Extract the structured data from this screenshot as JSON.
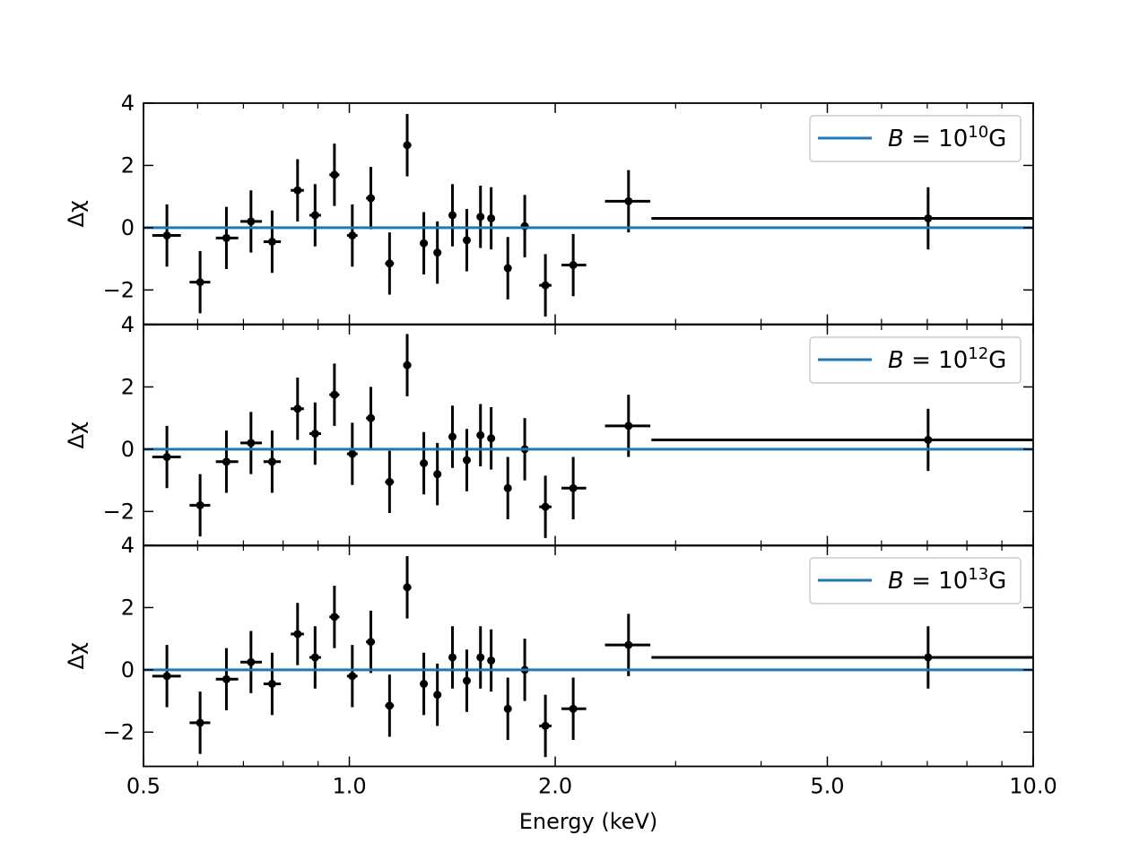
{
  "chart_data": {
    "type": "scatter",
    "xlabel": "Energy (keV)",
    "x_scale": "log",
    "xlim": [
      0.5,
      10.0
    ],
    "x_ticks": [
      0.5,
      1.0,
      2.0,
      5.0,
      10.0
    ],
    "x_tick_labels": [
      "0.5",
      "1.0",
      "2.0",
      "5.0",
      "10.0"
    ],
    "ylabel": "Δχ",
    "ylim": [
      -3.1,
      4.0
    ],
    "y_ticks": [
      -2,
      0,
      2,
      4
    ],
    "y_tick_labels": [
      "−2",
      "0",
      "2",
      "4"
    ],
    "grid": false,
    "legend_position": "top-right",
    "colors": {
      "model": "#1f77b4",
      "data": "#000000"
    },
    "panels": [
      {
        "legend_label": "B = 10^10 G",
        "legend_base": "B = 10",
        "legend_exp": "10",
        "legend_unit": "G",
        "model_value": 0,
        "points": [
          {
            "x": 0.541,
            "xlo": 0.515,
            "xhi": 0.567,
            "y": -0.25
          },
          {
            "x": 0.605,
            "xlo": 0.584,
            "xhi": 0.626,
            "y": -1.75
          },
          {
            "x": 0.661,
            "xlo": 0.638,
            "xhi": 0.688,
            "y": -0.33
          },
          {
            "x": 0.718,
            "xlo": 0.693,
            "xhi": 0.745,
            "y": 0.2
          },
          {
            "x": 0.771,
            "xlo": 0.749,
            "xhi": 0.794,
            "y": -0.45
          },
          {
            "x": 0.84,
            "xlo": 0.821,
            "xhi": 0.858,
            "y": 1.2
          },
          {
            "x": 0.891,
            "xlo": 0.874,
            "xhi": 0.909,
            "y": 0.4
          },
          {
            "x": 0.951,
            "xlo": 0.935,
            "xhi": 0.967,
            "y": 1.7
          },
          {
            "x": 1.01,
            "xlo": 0.992,
            "xhi": 1.028,
            "y": -0.25
          },
          {
            "x": 1.075,
            "xlo": 1.058,
            "xhi": 1.09,
            "y": 0.95
          },
          {
            "x": 1.145,
            "xlo": 1.128,
            "xhi": 1.162,
            "y": -1.15
          },
          {
            "x": 1.215,
            "xlo": 1.199,
            "xhi": 1.232,
            "y": 2.65
          },
          {
            "x": 1.285,
            "xlo": 1.269,
            "xhi": 1.302,
            "y": -0.5
          },
          {
            "x": 1.345,
            "xlo": 1.328,
            "xhi": 1.363,
            "y": -0.8
          },
          {
            "x": 1.415,
            "xlo": 1.398,
            "xhi": 1.432,
            "y": 0.4
          },
          {
            "x": 1.485,
            "xlo": 1.468,
            "xhi": 1.502,
            "y": -0.4
          },
          {
            "x": 1.555,
            "xlo": 1.538,
            "xhi": 1.572,
            "y": 0.35
          },
          {
            "x": 1.612,
            "xlo": 1.595,
            "xhi": 1.628,
            "y": 0.3
          },
          {
            "x": 1.705,
            "xlo": 1.688,
            "xhi": 1.722,
            "y": -1.3
          },
          {
            "x": 1.805,
            "xlo": 1.788,
            "xhi": 1.822,
            "y": 0.05
          },
          {
            "x": 1.935,
            "xlo": 1.895,
            "xhi": 1.975,
            "y": -1.85
          },
          {
            "x": 2.125,
            "xlo": 2.043,
            "xhi": 2.22,
            "y": -1.2
          },
          {
            "x": 2.56,
            "xlo": 2.365,
            "xhi": 2.755,
            "y": 0.85
          },
          {
            "x": 7.02,
            "xlo": 2.765,
            "xhi": 10.0,
            "y": 0.3
          }
        ]
      },
      {
        "legend_label": "B = 10^12 G",
        "legend_base": "B = 10",
        "legend_exp": "12",
        "legend_unit": "G",
        "model_value": 0,
        "points": [
          {
            "x": 0.541,
            "xlo": 0.515,
            "xhi": 0.567,
            "y": -0.25
          },
          {
            "x": 0.605,
            "xlo": 0.584,
            "xhi": 0.626,
            "y": -1.8
          },
          {
            "x": 0.661,
            "xlo": 0.638,
            "xhi": 0.688,
            "y": -0.4
          },
          {
            "x": 0.718,
            "xlo": 0.693,
            "xhi": 0.745,
            "y": 0.2
          },
          {
            "x": 0.771,
            "xlo": 0.749,
            "xhi": 0.794,
            "y": -0.4
          },
          {
            "x": 0.84,
            "xlo": 0.821,
            "xhi": 0.858,
            "y": 1.3
          },
          {
            "x": 0.891,
            "xlo": 0.874,
            "xhi": 0.909,
            "y": 0.5
          },
          {
            "x": 0.951,
            "xlo": 0.935,
            "xhi": 0.967,
            "y": 1.75
          },
          {
            "x": 1.01,
            "xlo": 0.992,
            "xhi": 1.028,
            "y": -0.15
          },
          {
            "x": 1.075,
            "xlo": 1.058,
            "xhi": 1.09,
            "y": 1.0
          },
          {
            "x": 1.145,
            "xlo": 1.128,
            "xhi": 1.162,
            "y": -1.05
          },
          {
            "x": 1.215,
            "xlo": 1.199,
            "xhi": 1.232,
            "y": 2.7
          },
          {
            "x": 1.285,
            "xlo": 1.269,
            "xhi": 1.302,
            "y": -0.45
          },
          {
            "x": 1.345,
            "xlo": 1.328,
            "xhi": 1.363,
            "y": -0.8
          },
          {
            "x": 1.415,
            "xlo": 1.398,
            "xhi": 1.432,
            "y": 0.4
          },
          {
            "x": 1.485,
            "xlo": 1.468,
            "xhi": 1.502,
            "y": -0.35
          },
          {
            "x": 1.555,
            "xlo": 1.538,
            "xhi": 1.572,
            "y": 0.45
          },
          {
            "x": 1.612,
            "xlo": 1.595,
            "xhi": 1.628,
            "y": 0.35
          },
          {
            "x": 1.705,
            "xlo": 1.688,
            "xhi": 1.722,
            "y": -1.25
          },
          {
            "x": 1.805,
            "xlo": 1.788,
            "xhi": 1.822,
            "y": 0.0
          },
          {
            "x": 1.935,
            "xlo": 1.895,
            "xhi": 1.975,
            "y": -1.85
          },
          {
            "x": 2.125,
            "xlo": 2.043,
            "xhi": 2.22,
            "y": -1.25
          },
          {
            "x": 2.56,
            "xlo": 2.365,
            "xhi": 2.755,
            "y": 0.75
          },
          {
            "x": 7.02,
            "xlo": 2.765,
            "xhi": 10.0,
            "y": 0.3
          }
        ]
      },
      {
        "legend_label": "B = 10^13 G",
        "legend_base": "B = 10",
        "legend_exp": "13",
        "legend_unit": "G",
        "model_value": 0,
        "points": [
          {
            "x": 0.541,
            "xlo": 0.515,
            "xhi": 0.567,
            "y": -0.2
          },
          {
            "x": 0.605,
            "xlo": 0.584,
            "xhi": 0.626,
            "y": -1.7
          },
          {
            "x": 0.661,
            "xlo": 0.638,
            "xhi": 0.688,
            "y": -0.3
          },
          {
            "x": 0.718,
            "xlo": 0.693,
            "xhi": 0.745,
            "y": 0.25
          },
          {
            "x": 0.771,
            "xlo": 0.749,
            "xhi": 0.794,
            "y": -0.45
          },
          {
            "x": 0.84,
            "xlo": 0.821,
            "xhi": 0.858,
            "y": 1.15
          },
          {
            "x": 0.891,
            "xlo": 0.874,
            "xhi": 0.909,
            "y": 0.4
          },
          {
            "x": 0.951,
            "xlo": 0.935,
            "xhi": 0.967,
            "y": 1.7
          },
          {
            "x": 1.01,
            "xlo": 0.992,
            "xhi": 1.028,
            "y": -0.2
          },
          {
            "x": 1.075,
            "xlo": 1.058,
            "xhi": 1.09,
            "y": 0.9
          },
          {
            "x": 1.145,
            "xlo": 1.128,
            "xhi": 1.162,
            "y": -1.15
          },
          {
            "x": 1.215,
            "xlo": 1.199,
            "xhi": 1.232,
            "y": 2.65
          },
          {
            "x": 1.285,
            "xlo": 1.269,
            "xhi": 1.302,
            "y": -0.45
          },
          {
            "x": 1.345,
            "xlo": 1.328,
            "xhi": 1.363,
            "y": -0.8
          },
          {
            "x": 1.415,
            "xlo": 1.398,
            "xhi": 1.432,
            "y": 0.4
          },
          {
            "x": 1.485,
            "xlo": 1.468,
            "xhi": 1.502,
            "y": -0.35
          },
          {
            "x": 1.555,
            "xlo": 1.538,
            "xhi": 1.572,
            "y": 0.4
          },
          {
            "x": 1.612,
            "xlo": 1.595,
            "xhi": 1.628,
            "y": 0.3
          },
          {
            "x": 1.705,
            "xlo": 1.688,
            "xhi": 1.722,
            "y": -1.25
          },
          {
            "x": 1.805,
            "xlo": 1.788,
            "xhi": 1.822,
            "y": 0.0
          },
          {
            "x": 1.935,
            "xlo": 1.895,
            "xhi": 1.975,
            "y": -1.8
          },
          {
            "x": 2.125,
            "xlo": 2.043,
            "xhi": 2.22,
            "y": -1.25
          },
          {
            "x": 2.56,
            "xlo": 2.365,
            "xhi": 2.755,
            "y": 0.8
          },
          {
            "x": 7.02,
            "xlo": 2.765,
            "xhi": 10.0,
            "y": 0.4
          }
        ]
      }
    ]
  }
}
